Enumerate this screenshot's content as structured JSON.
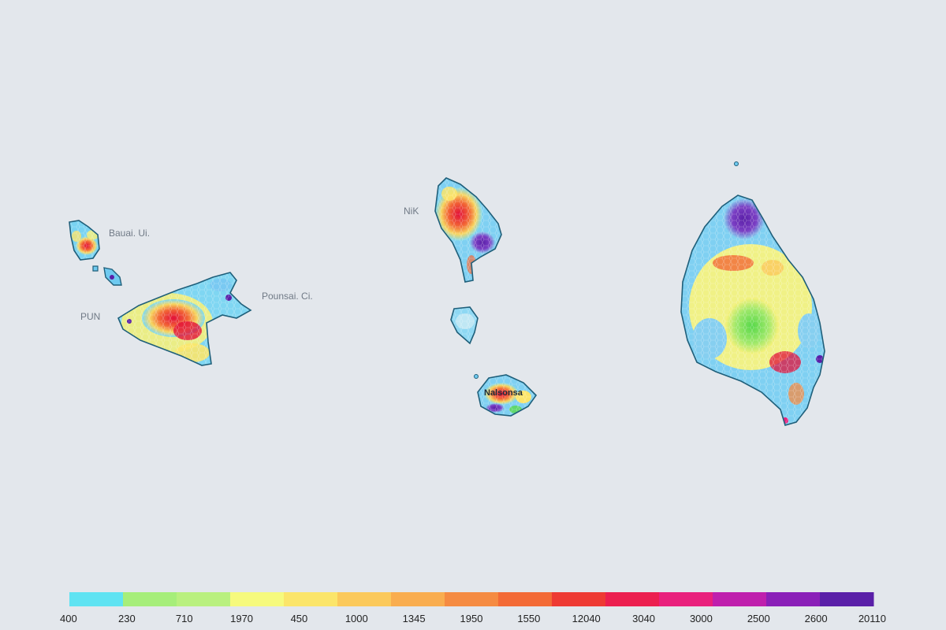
{
  "map": {
    "labels": [
      {
        "id": "bauai",
        "text": "Bauai. Ui."
      },
      {
        "id": "pun",
        "text": "PUN"
      },
      {
        "id": "pounsal",
        "text": "Pounsai. Ci."
      },
      {
        "id": "nik",
        "text": "NiK"
      },
      {
        "id": "nalsonsa",
        "text": "Nalsonsa"
      }
    ],
    "land_outline_color": "#1f5f7a",
    "ocean_color": "#e3e7ec"
  },
  "legend": {
    "ticks": [
      "400",
      "230",
      "710",
      "1970",
      "450",
      "1000",
      "1345",
      "1950",
      "1550",
      "12040",
      "3040",
      "3000",
      "2500",
      "2600",
      "20110"
    ],
    "colors": [
      "#5fe3f2",
      "#a6ee7a",
      "#b9f07f",
      "#f6fa7d",
      "#fbe56a",
      "#fbc95b",
      "#f9ad4f",
      "#f58b42",
      "#f36a36",
      "#ee3a33",
      "#ec1f4f",
      "#e9207c",
      "#bf1fad",
      "#8a1fb8",
      "#5a1fa8"
    ]
  }
}
